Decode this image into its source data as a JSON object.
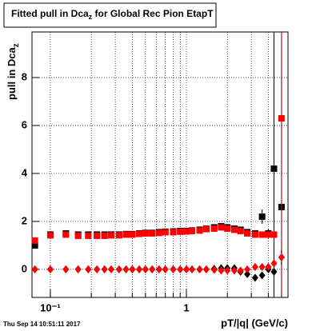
{
  "chart_data": {
    "type": "scatter",
    "title": {
      "main": "Fitted pull in Dca",
      "sub": "z",
      "rest": " for Global Rec Pion EtapT"
    },
    "ylabel": {
      "main": "pull in Dca",
      "sub": "z"
    },
    "xlabel": "pT/|q| (GeV/c)",
    "timestamp": "Thu Sep 14 10:51:11 2017",
    "xscale": "log",
    "grid": true,
    "xlim": [
      0.0733,
      5.58
    ],
    "ylim": [
      -1.17,
      9.9
    ],
    "xticks": [
      {
        "value": 0.1,
        "label": "10⁻¹"
      },
      {
        "value": 1,
        "label": "1"
      }
    ],
    "xgrid": [
      0.1,
      0.2,
      0.3,
      0.4,
      0.5,
      0.6,
      0.7,
      0.8,
      0.9,
      1,
      2,
      3,
      4,
      5
    ],
    "yticks": [
      0,
      2,
      4,
      6,
      8
    ],
    "x": [
      0.077,
      0.1,
      0.13,
      0.16,
      0.19,
      0.22,
      0.25,
      0.28,
      0.32,
      0.36,
      0.4,
      0.45,
      0.5,
      0.56,
      0.63,
      0.7,
      0.8,
      0.9,
      1.0,
      1.1,
      1.25,
      1.4,
      1.6,
      1.8,
      2.0,
      2.25,
      2.5,
      2.8,
      3.2,
      3.6,
      4.0,
      4.4,
      5.0
    ],
    "series": [
      {
        "color": "#000000",
        "marker": "square",
        "values": [
          1.0,
          1.45,
          1.5,
          1.45,
          1.45,
          1.45,
          1.45,
          1.45,
          1.45,
          1.47,
          1.47,
          1.5,
          1.52,
          1.52,
          1.55,
          1.57,
          1.58,
          1.6,
          1.6,
          1.62,
          1.65,
          1.7,
          1.75,
          1.8,
          1.75,
          1.7,
          1.65,
          1.55,
          1.5,
          2.2,
          1.5,
          4.2,
          2.6
        ],
        "errors": [
          0.08,
          0.04,
          0.03,
          0.03,
          0.03,
          0.03,
          0.03,
          0.03,
          0.03,
          0.03,
          0.03,
          0.03,
          0.03,
          0.03,
          0.03,
          0.03,
          0.03,
          0.03,
          0.03,
          0.03,
          0.03,
          0.04,
          0.04,
          0.05,
          0.05,
          0.06,
          0.07,
          0.08,
          0.1,
          0.3,
          0.2,
          8,
          8
        ]
      },
      {
        "color": "#ff0000",
        "marker": "square",
        "values": [
          1.2,
          1.42,
          1.45,
          1.4,
          1.4,
          1.4,
          1.4,
          1.42,
          1.42,
          1.45,
          1.45,
          1.48,
          1.5,
          1.5,
          1.52,
          1.55,
          1.55,
          1.57,
          1.58,
          1.6,
          1.62,
          1.68,
          1.7,
          1.75,
          1.7,
          1.65,
          1.6,
          1.5,
          1.45,
          1.45,
          1.45,
          1.45,
          6.3
        ],
        "errors": [
          0.08,
          0.04,
          0.03,
          0.03,
          0.03,
          0.03,
          0.03,
          0.03,
          0.03,
          0.03,
          0.03,
          0.03,
          0.03,
          0.03,
          0.03,
          0.03,
          0.03,
          0.03,
          0.03,
          0.03,
          0.03,
          0.04,
          0.04,
          0.05,
          0.05,
          0.06,
          0.07,
          0.08,
          0.1,
          0.1,
          0.12,
          0.15,
          8
        ]
      },
      {
        "color": "#000000",
        "marker": "diamond",
        "values": [
          0.0,
          0.0,
          0.0,
          0.0,
          0.0,
          0.0,
          0.0,
          0.0,
          0.0,
          0.0,
          0.0,
          0.0,
          0.0,
          0.0,
          0.0,
          0.0,
          0.0,
          0.0,
          0.0,
          0.0,
          0.0,
          0.0,
          0.02,
          0.05,
          0.05,
          0.05,
          -0.1,
          -0.2,
          -0.35,
          -0.25,
          0.0,
          -0.1,
          0.5
        ],
        "errors": [
          0.05,
          0.03,
          0.03,
          0.03,
          0.03,
          0.03,
          0.03,
          0.03,
          0.03,
          0.03,
          0.03,
          0.03,
          0.03,
          0.03,
          0.03,
          0.03,
          0.03,
          0.03,
          0.03,
          0.03,
          0.03,
          0.04,
          0.04,
          0.05,
          0.05,
          0.06,
          0.07,
          0.08,
          0.1,
          0.12,
          0.15,
          0.2,
          0.3
        ]
      },
      {
        "color": "#ff0000",
        "marker": "diamond",
        "values": [
          0.0,
          0.0,
          0.0,
          0.0,
          0.0,
          0.0,
          0.0,
          0.0,
          0.0,
          0.0,
          0.0,
          0.0,
          0.0,
          0.0,
          0.0,
          0.0,
          0.0,
          0.0,
          0.0,
          0.0,
          0.0,
          0.0,
          -0.02,
          -0.05,
          -0.05,
          -0.05,
          -0.05,
          0.0,
          0.1,
          0.1,
          0.1,
          0.25,
          0.5
        ],
        "errors": [
          0.05,
          0.03,
          0.03,
          0.03,
          0.03,
          0.03,
          0.03,
          0.03,
          0.03,
          0.03,
          0.03,
          0.03,
          0.03,
          0.03,
          0.03,
          0.03,
          0.03,
          0.03,
          0.03,
          0.03,
          0.03,
          0.04,
          0.04,
          0.05,
          0.05,
          0.06,
          0.07,
          0.08,
          0.1,
          0.1,
          0.12,
          0.15,
          0.2
        ]
      }
    ]
  }
}
